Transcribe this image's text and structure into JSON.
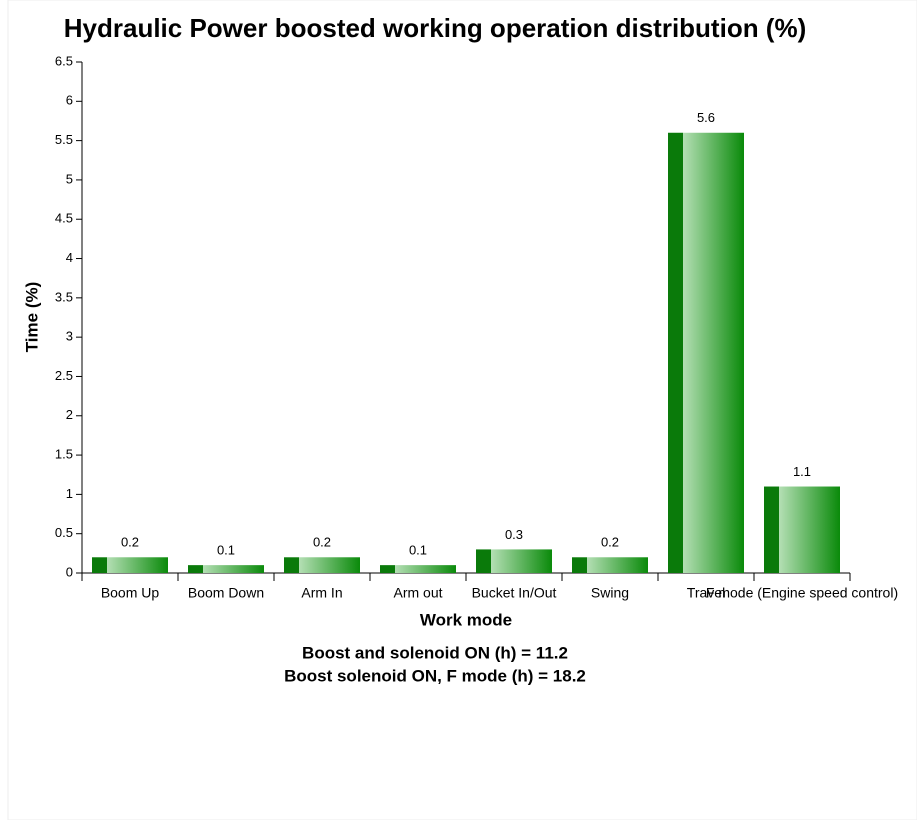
{
  "chart_data": {
    "type": "bar",
    "title": "Hydraulic Power boosted working operation distribution (%)",
    "x_label": "Work mode",
    "y_label": "Time (%)",
    "categories": [
      "Boom Up",
      "Boom Down",
      "Arm In",
      "Arm out",
      "Bucket In/Out",
      "Swing",
      "Travel",
      "F mode (Engine speed control)"
    ],
    "values": [
      0.2,
      0.1,
      0.2,
      0.1,
      0.3,
      0.2,
      5.6,
      1.1
    ],
    "color": "#0a850a",
    "ylim": [
      0,
      6.5
    ],
    "yticks": [
      0,
      0.5,
      1,
      1.5,
      2,
      2.5,
      3,
      3.5,
      4,
      4.5,
      5,
      5.5,
      6,
      6.5
    ],
    "grid": false,
    "annotations": [
      "Boost and solenoid ON (h) = 11.2",
      "Boost solenoid ON, F mode (h) = 18.2"
    ]
  }
}
